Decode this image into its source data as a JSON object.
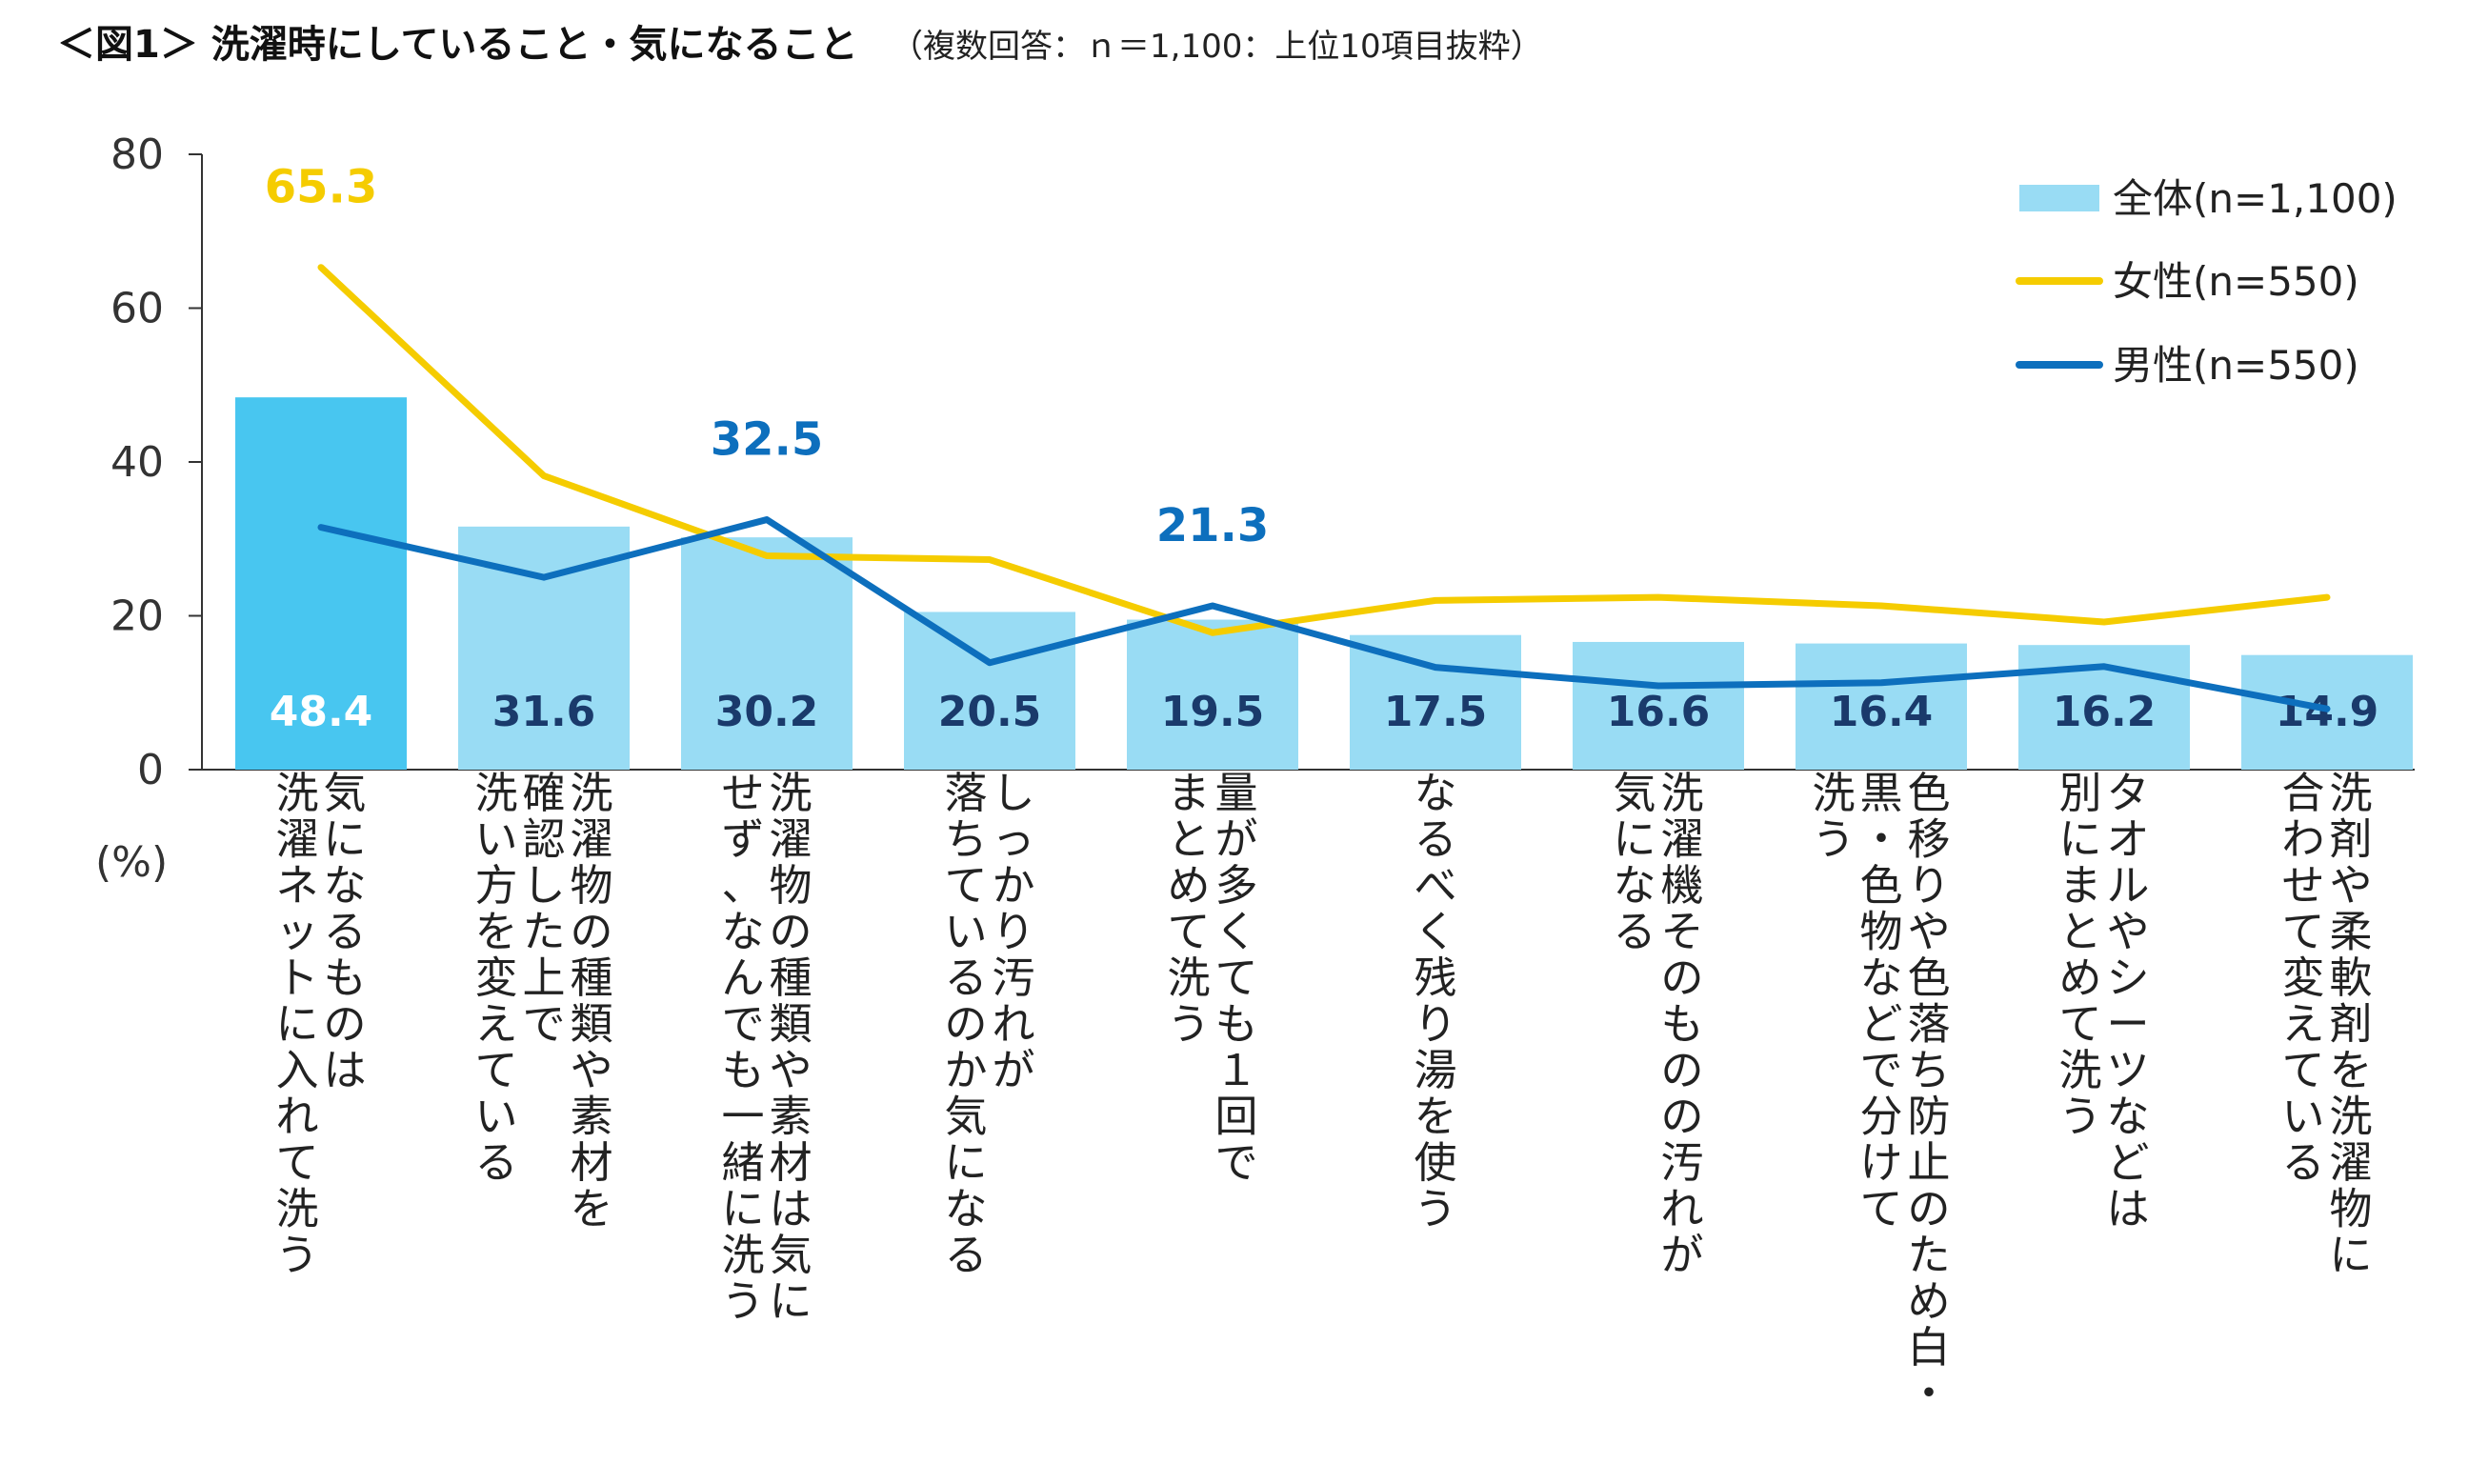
{
  "header": {
    "title": "＜図1＞ 洗濯時にしていること・気になること",
    "subtitle": "（複数回答：ｎ＝1,100：上位10項目抜粋）"
  },
  "colors": {
    "bar": "#99dcf4",
    "bar_highlight": "#48c6f0",
    "women": "#f5cc00",
    "men": "#0d6fbd",
    "axis": "#333333"
  },
  "chart_data": {
    "type": "bar",
    "title": "洗濯時にしていること・気になること",
    "ylabel": "(%)",
    "ylim": [
      0,
      80
    ],
    "yticks": [
      0,
      20,
      40,
      60,
      80
    ],
    "grid": false,
    "legend_position": "top-right",
    "categories": [
      [
        "気になるものは",
        "洗濯ネットに入れて洗う"
      ],
      [
        "洗濯物の種類や素材を",
        "確認した上で",
        "洗い方を変えている"
      ],
      [
        "洗濯物の種類や素材は気に",
        "せず、なんでも一緒に洗う"
      ],
      [
        "しっかり汚れが",
        "落ちているのか気になる"
      ],
      [
        "量が多くても１回で",
        "まとめて洗う"
      ],
      [
        "なるべく残り湯を使う"
      ],
      [
        "洗濯機そのものの汚れが",
        "気になる"
      ],
      [
        "色移りや色落ち防止のため白・",
        "黒・色物などで分けて",
        "洗う"
      ],
      [
        "タオルやシーツなどは",
        "別にまとめて洗う"
      ],
      [
        "洗剤や柔軟剤を洗濯物に",
        "合わせて変えている"
      ]
    ],
    "series": [
      {
        "name": "全体(n=1,100)",
        "type": "bar",
        "values": [
          48.4,
          31.6,
          30.2,
          20.5,
          19.5,
          17.5,
          16.6,
          16.4,
          16.2,
          14.9
        ],
        "labels": [
          "48.4",
          "31.6",
          "30.2",
          "20.5",
          "19.5",
          "17.5",
          "16.6",
          "16.4",
          "16.2",
          "14.9"
        ]
      },
      {
        "name": "女性(n=550)",
        "type": "line",
        "values": [
          65.3,
          38.2,
          27.8,
          27.3,
          17.8,
          22.0,
          22.4,
          21.3,
          19.2,
          22.4
        ]
      },
      {
        "name": "男性(n=550)",
        "type": "line",
        "values": [
          31.5,
          25.0,
          32.5,
          13.9,
          21.3,
          13.3,
          10.9,
          11.3,
          13.4,
          7.9
        ]
      }
    ],
    "annotations": [
      {
        "series": "女性(n=550)",
        "index": 0,
        "text": "65.3"
      },
      {
        "series": "男性(n=550)",
        "index": 2,
        "text": "32.5"
      },
      {
        "series": "男性(n=550)",
        "index": 4,
        "text": "21.3"
      }
    ]
  }
}
